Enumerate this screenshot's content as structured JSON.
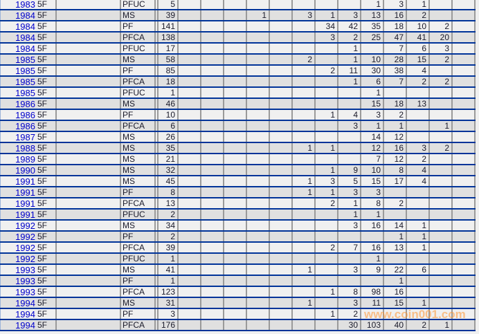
{
  "rows": [
    {
      "year": "1983",
      "grade": "5F",
      "type": "PFUC",
      "count": "5",
      "cols": [
        "",
        "",
        "",
        "",
        "",
        "",
        "",
        "",
        "1",
        "3",
        "1",
        "",
        ""
      ]
    },
    {
      "year": "1984",
      "grade": "5F",
      "type": "MS",
      "count": "39",
      "cols": [
        "",
        "",
        "",
        "1",
        "",
        "3",
        "1",
        "3",
        "13",
        "16",
        "2",
        "",
        ""
      ]
    },
    {
      "year": "1984",
      "grade": "5F",
      "type": "PF",
      "count": "141",
      "cols": [
        "",
        "",
        "",
        "",
        "",
        "",
        "34",
        "42",
        "35",
        "18",
        "10",
        "2",
        ""
      ]
    },
    {
      "year": "1984",
      "grade": "5F",
      "type": "PFCA",
      "count": "138",
      "cols": [
        "",
        "",
        "",
        "",
        "",
        "",
        "3",
        "2",
        "25",
        "47",
        "41",
        "20",
        ""
      ]
    },
    {
      "year": "1984",
      "grade": "5F",
      "type": "PFUC",
      "count": "17",
      "cols": [
        "",
        "",
        "",
        "",
        "",
        "",
        "",
        "1",
        "",
        "7",
        "6",
        "3",
        ""
      ]
    },
    {
      "year": "1985",
      "grade": "5F",
      "type": "MS",
      "count": "58",
      "cols": [
        "",
        "",
        "",
        "",
        "",
        "2",
        "",
        "1",
        "10",
        "28",
        "15",
        "2",
        ""
      ]
    },
    {
      "year": "1985",
      "grade": "5F",
      "type": "PF",
      "count": "85",
      "cols": [
        "",
        "",
        "",
        "",
        "",
        "",
        "2",
        "11",
        "30",
        "38",
        "4",
        "",
        ""
      ]
    },
    {
      "year": "1985",
      "grade": "5F",
      "type": "PFCA",
      "count": "18",
      "cols": [
        "",
        "",
        "",
        "",
        "",
        "",
        "",
        "1",
        "6",
        "7",
        "2",
        "2",
        ""
      ]
    },
    {
      "year": "1985",
      "grade": "5F",
      "type": "PFUC",
      "count": "1",
      "cols": [
        "",
        "",
        "",
        "",
        "",
        "",
        "",
        "",
        "1",
        "",
        "",
        "",
        ""
      ]
    },
    {
      "year": "1986",
      "grade": "5F",
      "type": "MS",
      "count": "46",
      "cols": [
        "",
        "",
        "",
        "",
        "",
        "",
        "",
        "",
        "15",
        "18",
        "13",
        "",
        ""
      ]
    },
    {
      "year": "1986",
      "grade": "5F",
      "type": "PF",
      "count": "10",
      "cols": [
        "",
        "",
        "",
        "",
        "",
        "",
        "1",
        "4",
        "3",
        "2",
        "",
        "",
        ""
      ]
    },
    {
      "year": "1986",
      "grade": "5F",
      "type": "PFCA",
      "count": "6",
      "cols": [
        "",
        "",
        "",
        "",
        "",
        "",
        "",
        "3",
        "1",
        "1",
        "",
        "1",
        ""
      ]
    },
    {
      "year": "1987",
      "grade": "5F",
      "type": "MS",
      "count": "26",
      "cols": [
        "",
        "",
        "",
        "",
        "",
        "",
        "",
        "",
        "14",
        "12",
        "",
        "",
        ""
      ]
    },
    {
      "year": "1988",
      "grade": "5F",
      "type": "MS",
      "count": "35",
      "cols": [
        "",
        "",
        "",
        "",
        "",
        "1",
        "1",
        "",
        "12",
        "16",
        "3",
        "2",
        ""
      ]
    },
    {
      "year": "1989",
      "grade": "5F",
      "type": "MS",
      "count": "21",
      "cols": [
        "",
        "",
        "",
        "",
        "",
        "",
        "",
        "",
        "7",
        "12",
        "2",
        "",
        ""
      ]
    },
    {
      "year": "1990",
      "grade": "5F",
      "type": "MS",
      "count": "32",
      "cols": [
        "",
        "",
        "",
        "",
        "",
        "",
        "1",
        "9",
        "10",
        "8",
        "4",
        "",
        ""
      ]
    },
    {
      "year": "1991",
      "grade": "5F",
      "type": "MS",
      "count": "45",
      "cols": [
        "",
        "",
        "",
        "",
        "",
        "1",
        "3",
        "5",
        "15",
        "17",
        "4",
        "",
        ""
      ]
    },
    {
      "year": "1991",
      "grade": "5F",
      "type": "PF",
      "count": "8",
      "cols": [
        "",
        "",
        "",
        "",
        "",
        "1",
        "1",
        "3",
        "3",
        "",
        "",
        "",
        ""
      ]
    },
    {
      "year": "1991",
      "grade": "5F",
      "type": "PFCA",
      "count": "13",
      "cols": [
        "",
        "",
        "",
        "",
        "",
        "",
        "2",
        "1",
        "8",
        "2",
        "",
        "",
        ""
      ]
    },
    {
      "year": "1991",
      "grade": "5F",
      "type": "PFUC",
      "count": "2",
      "cols": [
        "",
        "",
        "",
        "",
        "",
        "",
        "",
        "1",
        "1",
        "",
        "",
        "",
        ""
      ]
    },
    {
      "year": "1992",
      "grade": "5F",
      "type": "MS",
      "count": "34",
      "cols": [
        "",
        "",
        "",
        "",
        "",
        "",
        "",
        "3",
        "16",
        "14",
        "1",
        "",
        ""
      ]
    },
    {
      "year": "1992",
      "grade": "5F",
      "type": "PF",
      "count": "2",
      "cols": [
        "",
        "",
        "",
        "",
        "",
        "",
        "",
        "",
        "",
        "1",
        "1",
        "",
        ""
      ]
    },
    {
      "year": "1992",
      "grade": "5F",
      "type": "PFCA",
      "count": "39",
      "cols": [
        "",
        "",
        "",
        "",
        "",
        "",
        "2",
        "7",
        "16",
        "13",
        "1",
        "",
        ""
      ]
    },
    {
      "year": "1992",
      "grade": "5F",
      "type": "PFUC",
      "count": "1",
      "cols": [
        "",
        "",
        "",
        "",
        "",
        "",
        "",
        "",
        "1",
        "",
        "",
        "",
        ""
      ]
    },
    {
      "year": "1993",
      "grade": "5F",
      "type": "MS",
      "count": "41",
      "cols": [
        "",
        "",
        "",
        "",
        "",
        "1",
        "",
        "3",
        "9",
        "22",
        "6",
        "",
        ""
      ]
    },
    {
      "year": "1993",
      "grade": "5F",
      "type": "PF",
      "count": "1",
      "cols": [
        "",
        "",
        "",
        "",
        "",
        "",
        "",
        "",
        "",
        "1",
        "",
        "",
        ""
      ]
    },
    {
      "year": "1993",
      "grade": "5F",
      "type": "PFCA",
      "count": "123",
      "cols": [
        "",
        "",
        "",
        "",
        "",
        "",
        "1",
        "8",
        "98",
        "16",
        "",
        "",
        ""
      ]
    },
    {
      "year": "1994",
      "grade": "5F",
      "type": "MS",
      "count": "31",
      "cols": [
        "",
        "",
        "",
        "",
        "",
        "1",
        "",
        "3",
        "11",
        "15",
        "1",
        "",
        ""
      ]
    },
    {
      "year": "1994",
      "grade": "5F",
      "type": "PF",
      "count": "3",
      "cols": [
        "",
        "",
        "",
        "",
        "",
        "",
        "1",
        "2",
        "",
        "",
        "",
        "",
        ""
      ]
    },
    {
      "year": "1994",
      "grade": "5F",
      "type": "PFCA",
      "count": "176",
      "cols": [
        "",
        "",
        "",
        "",
        "",
        "",
        "",
        "30",
        "103",
        "40",
        "2",
        "1",
        ""
      ]
    }
  ],
  "watermark": "www.coin001.com",
  "colors": {
    "row_line": "#003399",
    "year_link": "#0000cc",
    "row_alt": "#e0e0e0",
    "row_base": "#f0f0f0",
    "watermark": "#ff9632"
  }
}
